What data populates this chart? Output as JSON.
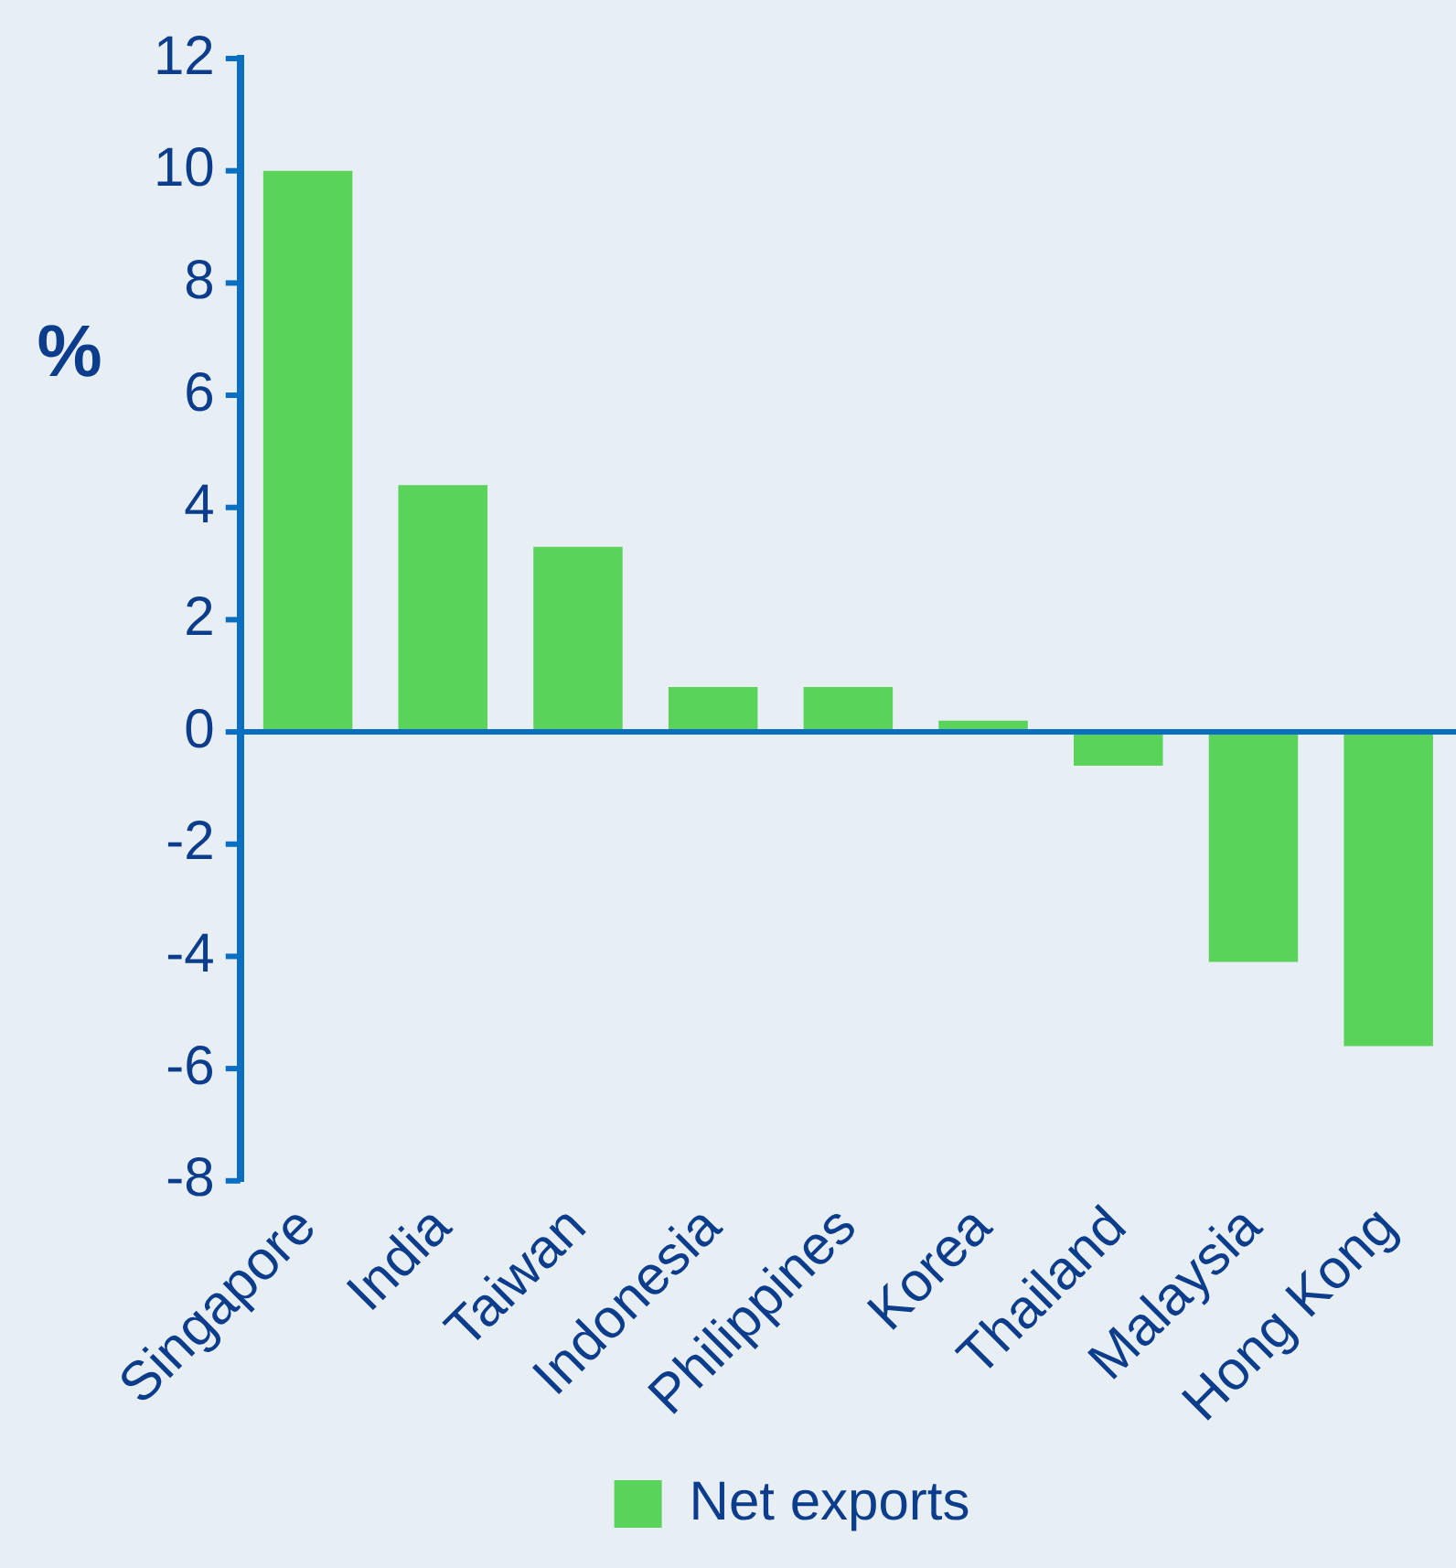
{
  "chart_data": {
    "type": "bar",
    "ylabel": "%",
    "categories": [
      "Singapore",
      "India",
      "Taiwan",
      "Indonesia",
      "Philippines",
      "Korea",
      "Thailand",
      "Malaysia",
      "Hong Kong"
    ],
    "series": [
      {
        "name": "Net exports",
        "color": "#5ad35a",
        "values": [
          10.0,
          4.4,
          3.3,
          0.8,
          0.8,
          0.2,
          -0.6,
          -4.1,
          -5.6
        ]
      }
    ],
    "ref_lines": [
      {
        "axis": "y",
        "value": 0,
        "color": "#0a6fc2"
      }
    ],
    "ylim": [
      -8,
      12
    ],
    "yticks": [
      -8,
      -6,
      -4,
      -2,
      0,
      2,
      4,
      6,
      8,
      10,
      12
    ],
    "grid": false,
    "legend": "bottom"
  }
}
